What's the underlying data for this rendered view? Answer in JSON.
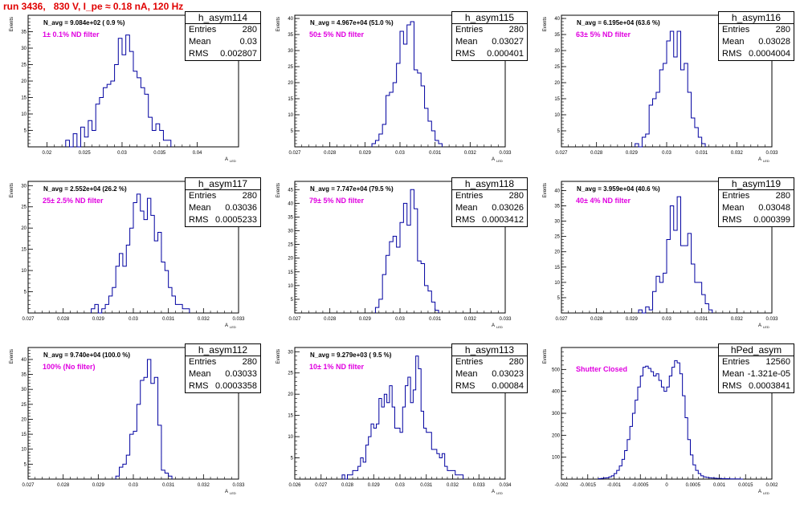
{
  "header": {
    "run_title": "run 3436,   830 V, I_pe ≈ 0.18 nA, 120 Hz"
  },
  "colors": {
    "hist_line": "#0000a0",
    "title_red": "#e00000",
    "filter_magenta": "#e000e0"
  },
  "chart_data": [
    {
      "type": "histogram",
      "name": "h_asym114",
      "stats": {
        "entries_label": "Entries",
        "entries": "280",
        "mean_label": "Mean",
        "mean": "0.03",
        "rms_label": "RMS",
        "rms": "0.002807"
      },
      "navg": "N_avg = 9.084e+02 ( 0.9 %)",
      "filter": "1± 0.1% ND filter",
      "xlabel": "A",
      "xlabel_sub": "LED",
      "ylabel": "Events",
      "xlim": [
        0.0175,
        0.0455
      ],
      "ylim": [
        0,
        40
      ],
      "xticks": [
        "0.02",
        "0.025",
        "0.03",
        "0.035",
        "0.04"
      ],
      "xtick_values": [
        0.02,
        0.025,
        0.03,
        0.035,
        0.04
      ],
      "yticks": [
        "5",
        "10",
        "15",
        "20",
        "25",
        "30",
        "35"
      ],
      "ytick_values": [
        5,
        10,
        15,
        20,
        25,
        30,
        35
      ],
      "bin_width": 0.0005,
      "bin_starts": [
        0.0225,
        0.023,
        0.0235,
        0.024,
        0.0245,
        0.025,
        0.0255,
        0.026,
        0.0265,
        0.027,
        0.0275,
        0.028,
        0.0285,
        0.029,
        0.0295,
        0.03,
        0.0305,
        0.031,
        0.0315,
        0.032,
        0.0325,
        0.033,
        0.0335,
        0.034,
        0.0345,
        0.035,
        0.0355,
        0.036
      ],
      "values": [
        2,
        0,
        4,
        0,
        6,
        3,
        8,
        5,
        13,
        15,
        18,
        19,
        20,
        25,
        33,
        28,
        34,
        29,
        23,
        21,
        18,
        16,
        9,
        5,
        7,
        5,
        2,
        2
      ]
    },
    {
      "type": "histogram",
      "name": "h_asym115",
      "stats": {
        "entries_label": "Entries",
        "entries": "280",
        "mean_label": "Mean",
        "mean": "0.03027",
        "rms_label": "RMS",
        "rms": "0.000401"
      },
      "navg": "N_avg = 4.967e+04 (51.0 %)",
      "filter": "50± 5% ND filter",
      "xlabel": "A",
      "xlabel_sub": "LED",
      "ylabel": "Events",
      "xlim": [
        0.027,
        0.033
      ],
      "ylim": [
        0,
        41
      ],
      "xticks": [
        "0.027",
        "0.028",
        "0.029",
        "0.03",
        "0.031",
        "0.032",
        "0.033"
      ],
      "xtick_values": [
        0.027,
        0.028,
        0.029,
        0.03,
        0.031,
        0.032,
        0.033
      ],
      "yticks": [
        "5",
        "10",
        "15",
        "20",
        "25",
        "30",
        "35",
        "40"
      ],
      "ytick_values": [
        5,
        10,
        15,
        20,
        25,
        30,
        35,
        40
      ],
      "bin_width": 0.0001,
      "bin_starts": [
        0.0292,
        0.0293,
        0.0294,
        0.0295,
        0.0296,
        0.0297,
        0.0298,
        0.0299,
        0.03,
        0.0301,
        0.0302,
        0.0303,
        0.0304,
        0.0305,
        0.0306,
        0.0307,
        0.0308,
        0.0309,
        0.031,
        0.0311
      ],
      "values": [
        1,
        2,
        4,
        7,
        16,
        17,
        20,
        26,
        36,
        32,
        38,
        39,
        24,
        23,
        19,
        12,
        8,
        5,
        2,
        1
      ]
    },
    {
      "type": "histogram",
      "name": "h_asym116",
      "stats": {
        "entries_label": "Entries",
        "entries": "280",
        "mean_label": "Mean",
        "mean": "0.03028",
        "rms_label": "RMS",
        "rms": "0.0004004"
      },
      "navg": "N_avg = 6.195e+04 (63.6 %)",
      "filter": "63± 5% ND filter",
      "xlabel": "A",
      "xlabel_sub": "LED",
      "ylabel": "Events",
      "xlim": [
        0.027,
        0.033
      ],
      "ylim": [
        0,
        41
      ],
      "xticks": [
        "0.027",
        "0.028",
        "0.029",
        "0.03",
        "0.031",
        "0.032",
        "0.033"
      ],
      "xtick_values": [
        0.027,
        0.028,
        0.029,
        0.03,
        0.031,
        0.032,
        0.033
      ],
      "yticks": [
        "5",
        "10",
        "15",
        "20",
        "25",
        "30",
        "35",
        "40"
      ],
      "ytick_values": [
        5,
        10,
        15,
        20,
        25,
        30,
        35,
        40
      ],
      "bin_width": 0.0001,
      "bin_starts": [
        0.0291,
        0.0292,
        0.0293,
        0.0294,
        0.0295,
        0.0296,
        0.0297,
        0.0298,
        0.0299,
        0.03,
        0.0301,
        0.0302,
        0.0303,
        0.0304,
        0.0305,
        0.0306,
        0.0307,
        0.0308,
        0.0309,
        0.031
      ],
      "values": [
        1,
        0,
        3,
        4,
        13,
        15,
        17,
        24,
        26,
        33,
        36,
        28,
        36,
        24,
        26,
        17,
        9,
        6,
        3,
        1
      ]
    },
    {
      "type": "histogram",
      "name": "h_asym117",
      "stats": {
        "entries_label": "Entries",
        "entries": "280",
        "mean_label": "Mean",
        "mean": "0.03036",
        "rms_label": "RMS",
        "rms": "0.0005233"
      },
      "navg": "N_avg = 2.552e+04 (26.2 %)",
      "filter": "25± 2.5% ND filter",
      "xlabel": "A",
      "xlabel_sub": "LED",
      "ylabel": "Events",
      "xlim": [
        0.027,
        0.033
      ],
      "ylim": [
        0,
        31
      ],
      "xticks": [
        "0.027",
        "0.028",
        "0.029",
        "0.03",
        "0.031",
        "0.032",
        "0.033"
      ],
      "xtick_values": [
        0.027,
        0.028,
        0.029,
        0.03,
        0.031,
        0.032,
        0.033
      ],
      "yticks": [
        "5",
        "10",
        "15",
        "20",
        "25",
        "30"
      ],
      "ytick_values": [
        5,
        10,
        15,
        20,
        25,
        30
      ],
      "bin_width": 0.0001,
      "bin_starts": [
        0.0288,
        0.0289,
        0.029,
        0.0291,
        0.0292,
        0.0293,
        0.0294,
        0.0295,
        0.0296,
        0.0297,
        0.0298,
        0.0299,
        0.03,
        0.0301,
        0.0302,
        0.0303,
        0.0304,
        0.0305,
        0.0306,
        0.0307,
        0.0308,
        0.0309,
        0.031,
        0.0311,
        0.0312,
        0.0313,
        0.0314,
        0.0315
      ],
      "values": [
        1,
        2,
        0,
        1,
        2,
        4,
        6,
        11,
        14,
        11,
        16,
        20,
        26,
        28,
        24,
        22,
        27,
        23,
        17,
        19,
        12,
        10,
        6,
        4,
        2,
        2,
        1,
        1
      ]
    },
    {
      "type": "histogram",
      "name": "h_asym118",
      "stats": {
        "entries_label": "Entries",
        "entries": "280",
        "mean_label": "Mean",
        "mean": "0.03026",
        "rms_label": "RMS",
        "rms": "0.0003412"
      },
      "navg": "N_avg = 7.747e+04 (79.5 %)",
      "filter": "79± 5% ND filter",
      "xlabel": "A",
      "xlabel_sub": "LED",
      "ylabel": "Events",
      "xlim": [
        0.027,
        0.033
      ],
      "ylim": [
        0,
        48
      ],
      "xticks": [
        "0.027",
        "0.028",
        "0.029",
        "0.03",
        "0.031",
        "0.032",
        "0.033"
      ],
      "xtick_values": [
        0.027,
        0.028,
        0.029,
        0.03,
        0.031,
        0.032,
        0.033
      ],
      "yticks": [
        "5",
        "10",
        "15",
        "20",
        "25",
        "30",
        "35",
        "40",
        "45"
      ],
      "ytick_values": [
        5,
        10,
        15,
        20,
        25,
        30,
        35,
        40,
        45
      ],
      "bin_width": 0.0001,
      "bin_starts": [
        0.0293,
        0.0294,
        0.0295,
        0.0296,
        0.0297,
        0.0298,
        0.0299,
        0.03,
        0.0301,
        0.0302,
        0.0303,
        0.0304,
        0.0305,
        0.0306,
        0.0307,
        0.0308,
        0.0309,
        0.031
      ],
      "values": [
        2,
        5,
        14,
        21,
        26,
        28,
        24,
        33,
        40,
        32,
        45,
        38,
        19,
        18,
        10,
        8,
        4,
        1
      ]
    },
    {
      "type": "histogram",
      "name": "h_asym119",
      "stats": {
        "entries_label": "Entries",
        "entries": "280",
        "mean_label": "Mean",
        "mean": "0.03048",
        "rms_label": "RMS",
        "rms": "0.000399"
      },
      "navg": "N_avg = 3.959e+04 (40.6 %)",
      "filter": "40± 4% ND filter",
      "xlabel": "A",
      "xlabel_sub": "LED",
      "ylabel": "Events",
      "xlim": [
        0.027,
        0.033
      ],
      "ylim": [
        0,
        43
      ],
      "xticks": [
        "0.027",
        "0.028",
        "0.029",
        "0.03",
        "0.031",
        "0.032",
        "0.033"
      ],
      "xtick_values": [
        0.027,
        0.028,
        0.029,
        0.03,
        0.031,
        0.032,
        0.033
      ],
      "yticks": [
        "5",
        "10",
        "15",
        "20",
        "25",
        "30",
        "35",
        "40"
      ],
      "ytick_values": [
        5,
        10,
        15,
        20,
        25,
        30,
        35,
        40
      ],
      "bin_width": 0.0001,
      "bin_starts": [
        0.0292,
        0.0293,
        0.0294,
        0.0295,
        0.0296,
        0.0297,
        0.0298,
        0.0299,
        0.03,
        0.0301,
        0.0302,
        0.0303,
        0.0304,
        0.0305,
        0.0306,
        0.0307,
        0.0308,
        0.0309,
        0.031,
        0.0311,
        0.0312
      ],
      "values": [
        1,
        0,
        2,
        1,
        7,
        12,
        10,
        13,
        24,
        35,
        27,
        38,
        22,
        22,
        26,
        16,
        10,
        10,
        6,
        3,
        1
      ]
    },
    {
      "type": "histogram",
      "name": "h_asym112",
      "stats": {
        "entries_label": "Entries",
        "entries": "280",
        "mean_label": "Mean",
        "mean": "0.03033",
        "rms_label": "RMS",
        "rms": "0.0003358"
      },
      "navg": "N_avg = 9.740e+04 (100.0 %)",
      "filter": "100% (No filter)",
      "xlabel": "A",
      "xlabel_sub": "LED",
      "ylabel": "Events",
      "xlim": [
        0.027,
        0.033
      ],
      "ylim": [
        0,
        44
      ],
      "xticks": [
        "0.027",
        "0.028",
        "0.029",
        "0.03",
        "0.031",
        "0.032",
        "0.033"
      ],
      "xtick_values": [
        0.027,
        0.028,
        0.029,
        0.03,
        0.031,
        0.032,
        0.033
      ],
      "yticks": [
        "5",
        "10",
        "15",
        "20",
        "25",
        "30",
        "35",
        "40"
      ],
      "ytick_values": [
        5,
        10,
        15,
        20,
        25,
        30,
        35,
        40
      ],
      "bin_width": 0.0001,
      "bin_starts": [
        0.0295,
        0.0296,
        0.0297,
        0.0298,
        0.0299,
        0.03,
        0.0301,
        0.0302,
        0.0303,
        0.0304,
        0.0305,
        0.0306,
        0.0307,
        0.0308,
        0.0309,
        0.031
      ],
      "values": [
        1,
        4,
        5,
        8,
        15,
        16,
        25,
        33,
        34,
        40,
        32,
        34,
        18,
        3,
        2,
        1
      ]
    },
    {
      "type": "histogram",
      "name": "h_asym113",
      "stats": {
        "entries_label": "Entries",
        "entries": "280",
        "mean_label": "Mean",
        "mean": "0.03023",
        "rms_label": "RMS",
        "rms": "0.00084"
      },
      "navg": "N_avg = 9.279e+03 ( 9.5 %)",
      "filter": "10± 1% ND filter",
      "xlabel": "A",
      "xlabel_sub": "LED",
      "ylabel": "Events",
      "xlim": [
        0.026,
        0.034
      ],
      "ylim": [
        0,
        31
      ],
      "xticks": [
        "0.026",
        "0.027",
        "0.028",
        "0.029",
        "0.03",
        "0.031",
        "0.032",
        "0.033",
        "0.034"
      ],
      "xtick_values": [
        0.026,
        0.027,
        0.028,
        0.029,
        0.03,
        0.031,
        0.032,
        0.033,
        0.034
      ],
      "yticks": [
        "5",
        "10",
        "15",
        "20",
        "25",
        "30"
      ],
      "ytick_values": [
        5,
        10,
        15,
        20,
        25,
        30
      ],
      "bin_width": 0.0001,
      "bin_starts": [
        0.0278,
        0.0279,
        0.028,
        0.0281,
        0.0282,
        0.0283,
        0.0284,
        0.0285,
        0.0286,
        0.0287,
        0.0288,
        0.0289,
        0.029,
        0.0291,
        0.0292,
        0.0293,
        0.0294,
        0.0295,
        0.0296,
        0.0297,
        0.0298,
        0.0299,
        0.03,
        0.0301,
        0.0302,
        0.0303,
        0.0304,
        0.0305,
        0.0306,
        0.0307,
        0.0308,
        0.0309,
        0.031,
        0.0311,
        0.0312,
        0.0313,
        0.0314,
        0.0315,
        0.0316,
        0.0317,
        0.0318,
        0.0319,
        0.032,
        0.0321,
        0.0322,
        0.0323
      ],
      "values": [
        1,
        0,
        1,
        1,
        2,
        2,
        3,
        5,
        4,
        8,
        10,
        13,
        12,
        13,
        19,
        17,
        20,
        18,
        22,
        17,
        12,
        12,
        11,
        17,
        22,
        24,
        18,
        21,
        29,
        26,
        16,
        12,
        11,
        11,
        7,
        7,
        6,
        5,
        6,
        3,
        2,
        2,
        2,
        1,
        1,
        1
      ]
    },
    {
      "type": "histogram",
      "name": "hPed_asym",
      "stats": {
        "entries_label": "Entries",
        "entries": "12560",
        "mean_label": "Mean",
        "mean": "-1.321e-05",
        "rms_label": "RMS",
        "rms": "0.0003841"
      },
      "navg": "",
      "filter": "Shutter Closed",
      "xlabel": "A",
      "xlabel_sub": "LED",
      "ylabel": "Events",
      "xlim": [
        -0.002,
        0.002
      ],
      "ylim": [
        0,
        600
      ],
      "xticks": [
        "-0.002",
        "-0.0015",
        "-0.001",
        "-0.0005",
        "0",
        "0.0005",
        "0.001",
        "0.0015",
        "0.002"
      ],
      "xtick_values": [
        -0.002,
        -0.0015,
        -0.001,
        -0.0005,
        0,
        0.0005,
        0.001,
        0.0015,
        0.002
      ],
      "yticks": [
        "100",
        "200",
        "300",
        "400",
        "500"
      ],
      "ytick_values": [
        100,
        200,
        300,
        400,
        500
      ],
      "bin_width": 5e-05,
      "bin_starts": [
        -0.0013,
        -0.00125,
        -0.0012,
        -0.00115,
        -0.0011,
        -0.00105,
        -0.001,
        -0.00095,
        -0.0009,
        -0.00085,
        -0.0008,
        -0.00075,
        -0.0007,
        -0.00065,
        -0.0006,
        -0.00055,
        -0.0005,
        -0.00045,
        -0.0004,
        -0.00035,
        -0.0003,
        -0.00025,
        -0.0002,
        -0.00015,
        -0.0001,
        -5e-05,
        0,
        5e-05,
        0.0001,
        0.00015,
        0.0002,
        0.00025,
        0.0003,
        0.00035,
        0.0004,
        0.00045,
        0.0005,
        0.00055,
        0.0006,
        0.00065,
        0.0007,
        0.00075,
        0.0008,
        0.00085,
        0.0009,
        0.00095,
        0.001,
        0.00105,
        0.0011,
        0.00115,
        0.0012,
        0.00125,
        0.0013,
        0.00135,
        0.0014
      ],
      "values": [
        2,
        3,
        5,
        6,
        10,
        15,
        25,
        40,
        60,
        90,
        130,
        180,
        240,
        300,
        360,
        420,
        470,
        510,
        515,
        505,
        490,
        470,
        480,
        450,
        420,
        400,
        420,
        470,
        510,
        540,
        530,
        480,
        380,
        280,
        180,
        110,
        65,
        40,
        25,
        15,
        10,
        8,
        6,
        5,
        4,
        3,
        3,
        2,
        2,
        2,
        1,
        1,
        1,
        1,
        0
      ]
    }
  ]
}
